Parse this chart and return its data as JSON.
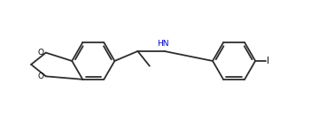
{
  "bg_color": "#ffffff",
  "line_color": "#2d2d2d",
  "line_width": 1.3,
  "text_color": "#000000",
  "hn_color": "#0000cc",
  "i_color": "#000000",
  "o_color": "#000000",
  "figsize": [
    3.51,
    1.46
  ],
  "dpi": 100,
  "xlim": [
    0.0,
    10.5
  ],
  "ylim": [
    0.5,
    4.5
  ]
}
